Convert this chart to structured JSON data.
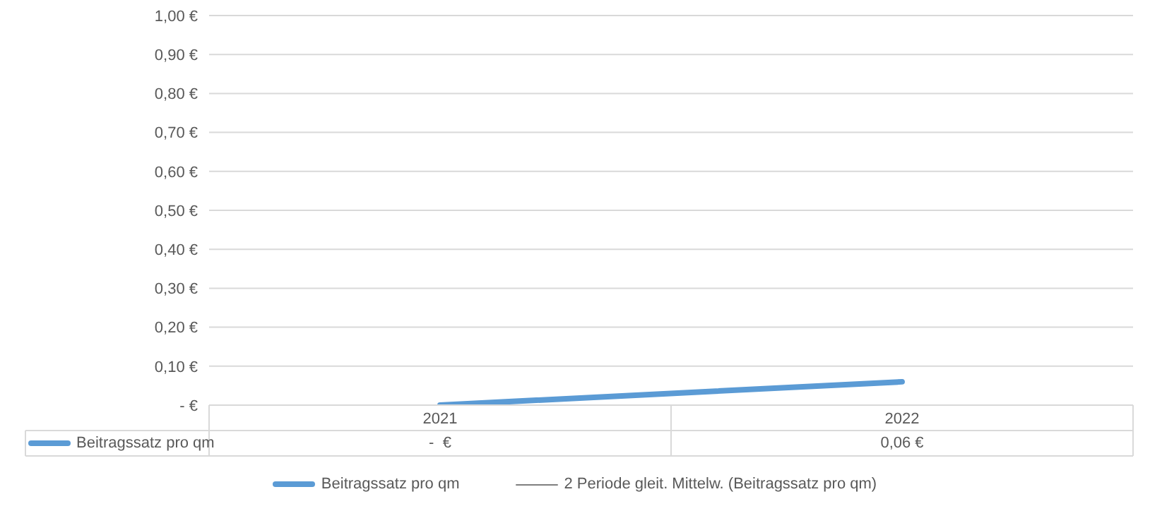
{
  "chart_data": {
    "type": "line",
    "categories": [
      "2021",
      "2022"
    ],
    "series": [
      {
        "name": "Beitragssatz pro qm",
        "color": "#5b9bd5",
        "values": [
          0,
          0.06
        ],
        "value_labels": [
          "-  €",
          "0,06 €"
        ]
      },
      {
        "name": "2 Periode gleit. Mittelw. (Beitragssatz pro qm)",
        "color": "#7f7f7f",
        "values": [
          null,
          null
        ]
      }
    ],
    "ylim": [
      0,
      1
    ],
    "yticks": [
      {
        "value": 0,
        "label": "-  €"
      },
      {
        "value": 0.1,
        "label": "0,10 €"
      },
      {
        "value": 0.2,
        "label": "0,20 €"
      },
      {
        "value": 0.3,
        "label": "0,30 €"
      },
      {
        "value": 0.4,
        "label": "0,40 €"
      },
      {
        "value": 0.5,
        "label": "0,50 €"
      },
      {
        "value": 0.6,
        "label": "0,60 €"
      },
      {
        "value": 0.7,
        "label": "0,70 €"
      },
      {
        "value": 0.8,
        "label": "0,80 €"
      },
      {
        "value": 0.9,
        "label": "0,90 €"
      },
      {
        "value": 1,
        "label": "1,00 €"
      }
    ],
    "grid": "y",
    "legend": "bottom",
    "marker": "none",
    "line_style": "solid"
  }
}
